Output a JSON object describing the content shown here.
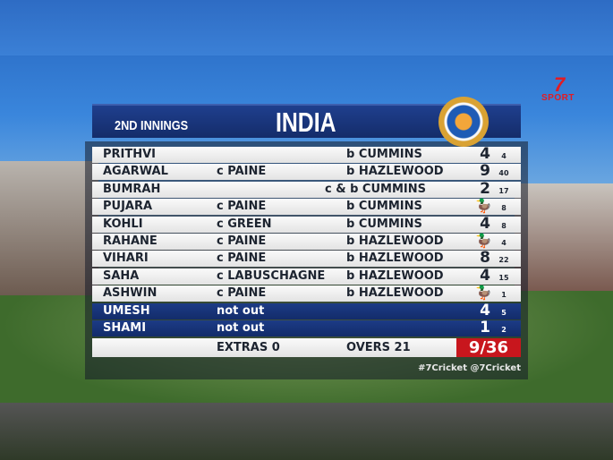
{
  "broadcaster": {
    "logo_text": "7 SPORT"
  },
  "scorecard": {
    "innings_label": "2ND INNINGS",
    "team": "INDIA",
    "badge_icon": "bcci-crest-icon",
    "batsmen": [
      {
        "name": "PRITHVI",
        "catch": "",
        "bowler": "b CUMMINS",
        "runs": "4",
        "balls": "4",
        "duck": false,
        "not_out": false
      },
      {
        "name": "AGARWAL",
        "catch": "c PAINE",
        "bowler": "b HAZLEWOOD",
        "runs": "9",
        "balls": "40",
        "duck": false,
        "not_out": false
      },
      {
        "name": "BUMRAH",
        "catch": "",
        "bowler": "c & b CUMMINS",
        "runs": "2",
        "balls": "17",
        "duck": false,
        "not_out": false
      },
      {
        "name": "PUJARA",
        "catch": "c PAINE",
        "bowler": "b CUMMINS",
        "runs": "0",
        "balls": "8",
        "duck": true,
        "not_out": false
      },
      {
        "name": "KOHLI",
        "catch": "c GREEN",
        "bowler": "b CUMMINS",
        "runs": "4",
        "balls": "8",
        "duck": false,
        "not_out": false
      },
      {
        "name": "RAHANE",
        "catch": "c PAINE",
        "bowler": "b HAZLEWOOD",
        "runs": "0",
        "balls": "4",
        "duck": true,
        "not_out": false
      },
      {
        "name": "VIHARI",
        "catch": "c PAINE",
        "bowler": "b HAZLEWOOD",
        "runs": "8",
        "balls": "22",
        "duck": false,
        "not_out": false
      },
      {
        "name": "SAHA",
        "catch": "c LABUSCHAGNE",
        "bowler": "b HAZLEWOOD",
        "runs": "4",
        "balls": "15",
        "duck": false,
        "not_out": false
      },
      {
        "name": "ASHWIN",
        "catch": "c PAINE",
        "bowler": "b HAZLEWOOD",
        "runs": "0",
        "balls": "1",
        "duck": true,
        "not_out": false
      },
      {
        "name": "UMESH",
        "catch": "not out",
        "bowler": "",
        "runs": "4",
        "balls": "5",
        "duck": false,
        "not_out": true
      },
      {
        "name": "SHAMI",
        "catch": "not out",
        "bowler": "",
        "runs": "1",
        "balls": "2",
        "duck": false,
        "not_out": true
      }
    ],
    "extras": "EXTRAS  0",
    "overs": "OVERS 21",
    "total": "9/36",
    "hashtag": "#7Cricket @7Cricket"
  },
  "colors": {
    "header_blue": "#142c6a",
    "total_red": "#c8161d",
    "logo_red": "#e21b23"
  }
}
